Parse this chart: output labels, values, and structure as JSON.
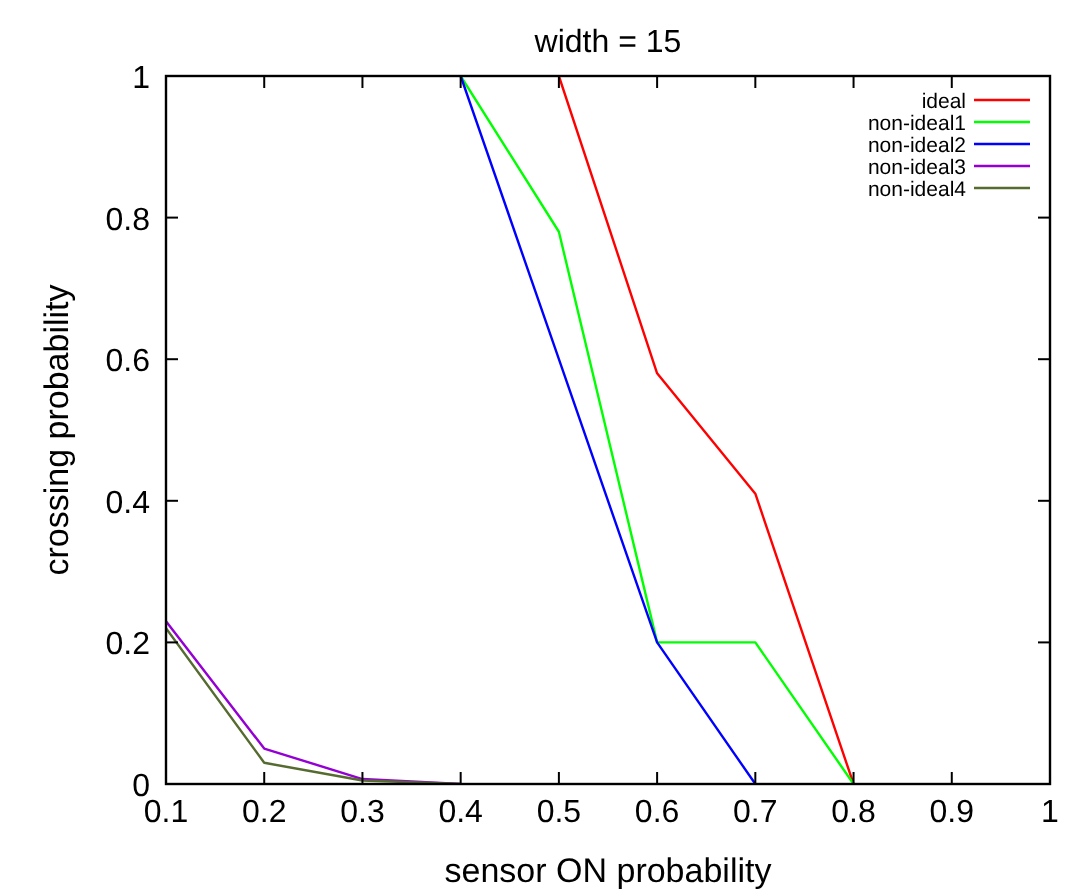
{
  "chart_data": {
    "type": "line",
    "title": "width = 15",
    "xlabel": "sensor ON probability",
    "ylabel": "crossing probability",
    "x": [
      0.1,
      0.2,
      0.3,
      0.4,
      0.5,
      0.6,
      0.7,
      0.8
    ],
    "series": [
      {
        "name": "ideal",
        "color": "#ff0000",
        "values": [
          null,
          null,
          null,
          null,
          1,
          0.58,
          0.41,
          0
        ]
      },
      {
        "name": "non-ideal1",
        "color": "#00ff00",
        "values": [
          null,
          null,
          null,
          1,
          0.78,
          0.2,
          0.2,
          0
        ]
      },
      {
        "name": "non-ideal2",
        "color": "#0000ff",
        "values": [
          null,
          null,
          null,
          1,
          0.6,
          0.2,
          0,
          null
        ]
      },
      {
        "name": "non-ideal3",
        "color": "#9400d3",
        "values": [
          0.23,
          0.05,
          0.007,
          0,
          null,
          null,
          null,
          null
        ]
      },
      {
        "name": "non-ideal4",
        "color": "#556b2f",
        "values": [
          0.22,
          0.03,
          0.005,
          0,
          null,
          null,
          null,
          null
        ]
      }
    ],
    "xlim": [
      0.1,
      1
    ],
    "ylim": [
      0,
      1
    ],
    "xticks": [
      0.1,
      0.2,
      0.3,
      0.4,
      0.5,
      0.6,
      0.7,
      0.8,
      0.9,
      1
    ],
    "yticks": [
      0,
      0.2,
      0.4,
      0.6,
      0.8,
      1
    ],
    "grid": false,
    "legend": "top right",
    "marker": "none",
    "line_style": "solid"
  }
}
